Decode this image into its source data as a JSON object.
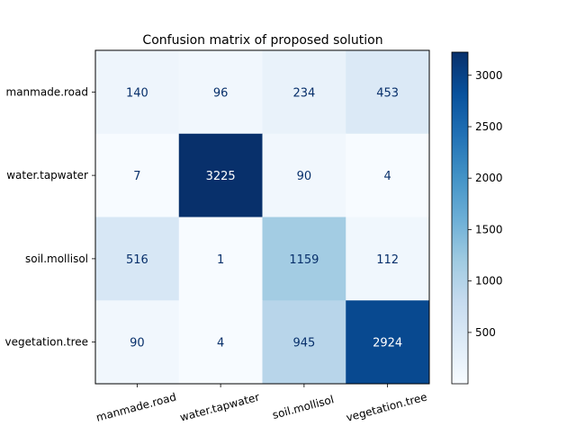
{
  "chart_data": {
    "type": "heatmap",
    "title": "Confusion matrix of proposed solution",
    "xlabel": "",
    "ylabel": "",
    "row_labels": [
      "manmade.road",
      "water.tapwater",
      "soil.mollisol",
      "vegetation.tree"
    ],
    "col_labels": [
      "manmade.road",
      "water.tapwater",
      "soil.mollisol",
      "vegetation.tree"
    ],
    "values": [
      [
        140,
        96,
        234,
        453
      ],
      [
        7,
        3225,
        90,
        4
      ],
      [
        516,
        1,
        1159,
        112
      ],
      [
        90,
        4,
        945,
        2924
      ]
    ],
    "colormap": "Blues",
    "color_range": [
      1,
      3225
    ],
    "colorbar_ticks": [
      500,
      1000,
      1500,
      2000,
      2500,
      3000
    ],
    "grid": false
  }
}
